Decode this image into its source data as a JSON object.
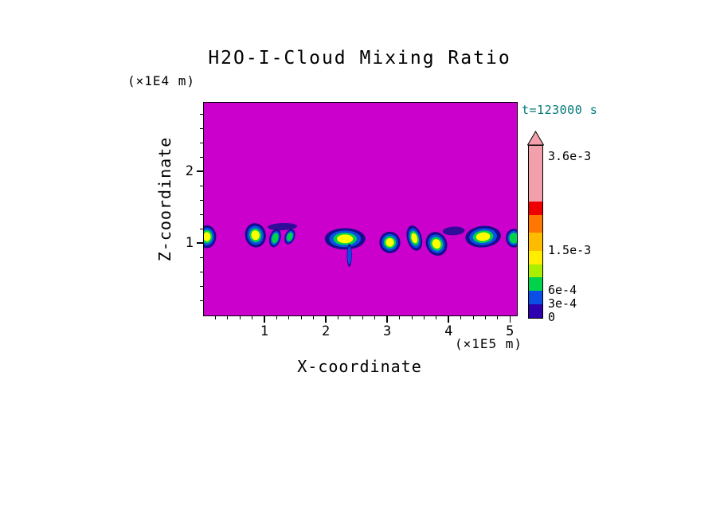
{
  "chart_data": {
    "type": "heatmap",
    "title": "H2O-I-Cloud Mixing Ratio",
    "time_annotation": "t=123000 s",
    "annotation_color": "#007878",
    "xlabel": "X-coordinate",
    "ylabel": "Z-coordinate",
    "x_unit_label": "(×1E5 m)",
    "y_unit_label": "(×1E4 m)",
    "xlim": [
      0,
      5.1
    ],
    "ylim": [
      0,
      2.97
    ],
    "x_ticks": [
      {
        "value": 1,
        "label": "1"
      },
      {
        "value": 2,
        "label": "2"
      },
      {
        "value": 3,
        "label": "3"
      },
      {
        "value": 4,
        "label": "4"
      },
      {
        "value": 5,
        "label": "5"
      }
    ],
    "y_ticks": [
      {
        "value": 1,
        "label": "1"
      },
      {
        "value": 2,
        "label": "2"
      }
    ],
    "x_minor_step": 0.2,
    "y_minor_step": 0.2,
    "background_color": "#CC00CC",
    "frame_color": "#000000",
    "cloud_palette": [
      "#140F8F",
      "#0A50E6",
      "#00D24B",
      "#FFFF00"
    ],
    "cloud_layer_scales": [
      1,
      0.78,
      0.58,
      0.4
    ],
    "clouds": [
      {
        "cx": 0.05,
        "cz": 1.1,
        "rx": 0.15,
        "rz": 0.16,
        "rot": 0,
        "levels": 4
      },
      {
        "cx": 0.84,
        "cz": 1.12,
        "rx": 0.17,
        "rz": 0.17,
        "rot": -10,
        "levels": 4
      },
      {
        "cx": 1.16,
        "cz": 1.08,
        "rx": 0.09,
        "rz": 0.13,
        "rot": 15,
        "levels": 3
      },
      {
        "cx": 1.4,
        "cz": 1.1,
        "rx": 0.08,
        "rz": 0.11,
        "rot": 20,
        "levels": 3
      },
      {
        "cx": 1.28,
        "cz": 1.24,
        "rx": 0.24,
        "rz": 0.05,
        "rot": -2,
        "levels": 1
      },
      {
        "cx": 2.3,
        "cz": 1.07,
        "rx": 0.33,
        "rz": 0.15,
        "rot": 0,
        "levels": 4
      },
      {
        "cx": 2.37,
        "cz": 0.84,
        "rx": 0.04,
        "rz": 0.16,
        "rot": 0,
        "levels": 2
      },
      {
        "cx": 3.03,
        "cz": 1.02,
        "rx": 0.17,
        "rz": 0.15,
        "rot": -8,
        "levels": 4
      },
      {
        "cx": 3.43,
        "cz": 1.08,
        "rx": 0.12,
        "rz": 0.18,
        "rot": -15,
        "levels": 4
      },
      {
        "cx": 3.79,
        "cz": 1.0,
        "rx": 0.17,
        "rz": 0.17,
        "rot": -25,
        "levels": 4
      },
      {
        "cx": 4.07,
        "cz": 1.18,
        "rx": 0.18,
        "rz": 0.06,
        "rot": -3,
        "levels": 1
      },
      {
        "cx": 4.55,
        "cz": 1.1,
        "rx": 0.29,
        "rz": 0.15,
        "rot": -5,
        "levels": 4
      },
      {
        "cx": 5.05,
        "cz": 1.08,
        "rx": 0.13,
        "rz": 0.13,
        "rot": 0,
        "levels": 3
      }
    ],
    "colorbar": {
      "vmax": 0.00384,
      "overflow_color": "#F2A0AC",
      "segments": [
        {
          "from": 0,
          "to": 0.0003,
          "color": "#2E00B0"
        },
        {
          "from": 0.0003,
          "to": 0.0006,
          "color": "#0A50E6"
        },
        {
          "from": 0.0006,
          "to": 0.0009,
          "color": "#00D24B"
        },
        {
          "from": 0.0009,
          "to": 0.0012,
          "color": "#AAEE00"
        },
        {
          "from": 0.0012,
          "to": 0.0015,
          "color": "#FFEE00"
        },
        {
          "from": 0.0015,
          "to": 0.0019,
          "color": "#FFBB00"
        },
        {
          "from": 0.0019,
          "to": 0.0023,
          "color": "#FF7700"
        },
        {
          "from": 0.0023,
          "to": 0.0026,
          "color": "#EE0000"
        },
        {
          "from": 0.0026,
          "to": 0.00384,
          "color": "#F2A0AC"
        }
      ],
      "labels": [
        {
          "value": 0.0036,
          "text": "3.6e-3"
        },
        {
          "value": 0.0015,
          "text": "1.5e-3"
        },
        {
          "value": 0.0006,
          "text": "6e-4"
        },
        {
          "value": 0.0003,
          "text": "3e-4"
        },
        {
          "value": 0,
          "text": "0"
        }
      ]
    }
  }
}
